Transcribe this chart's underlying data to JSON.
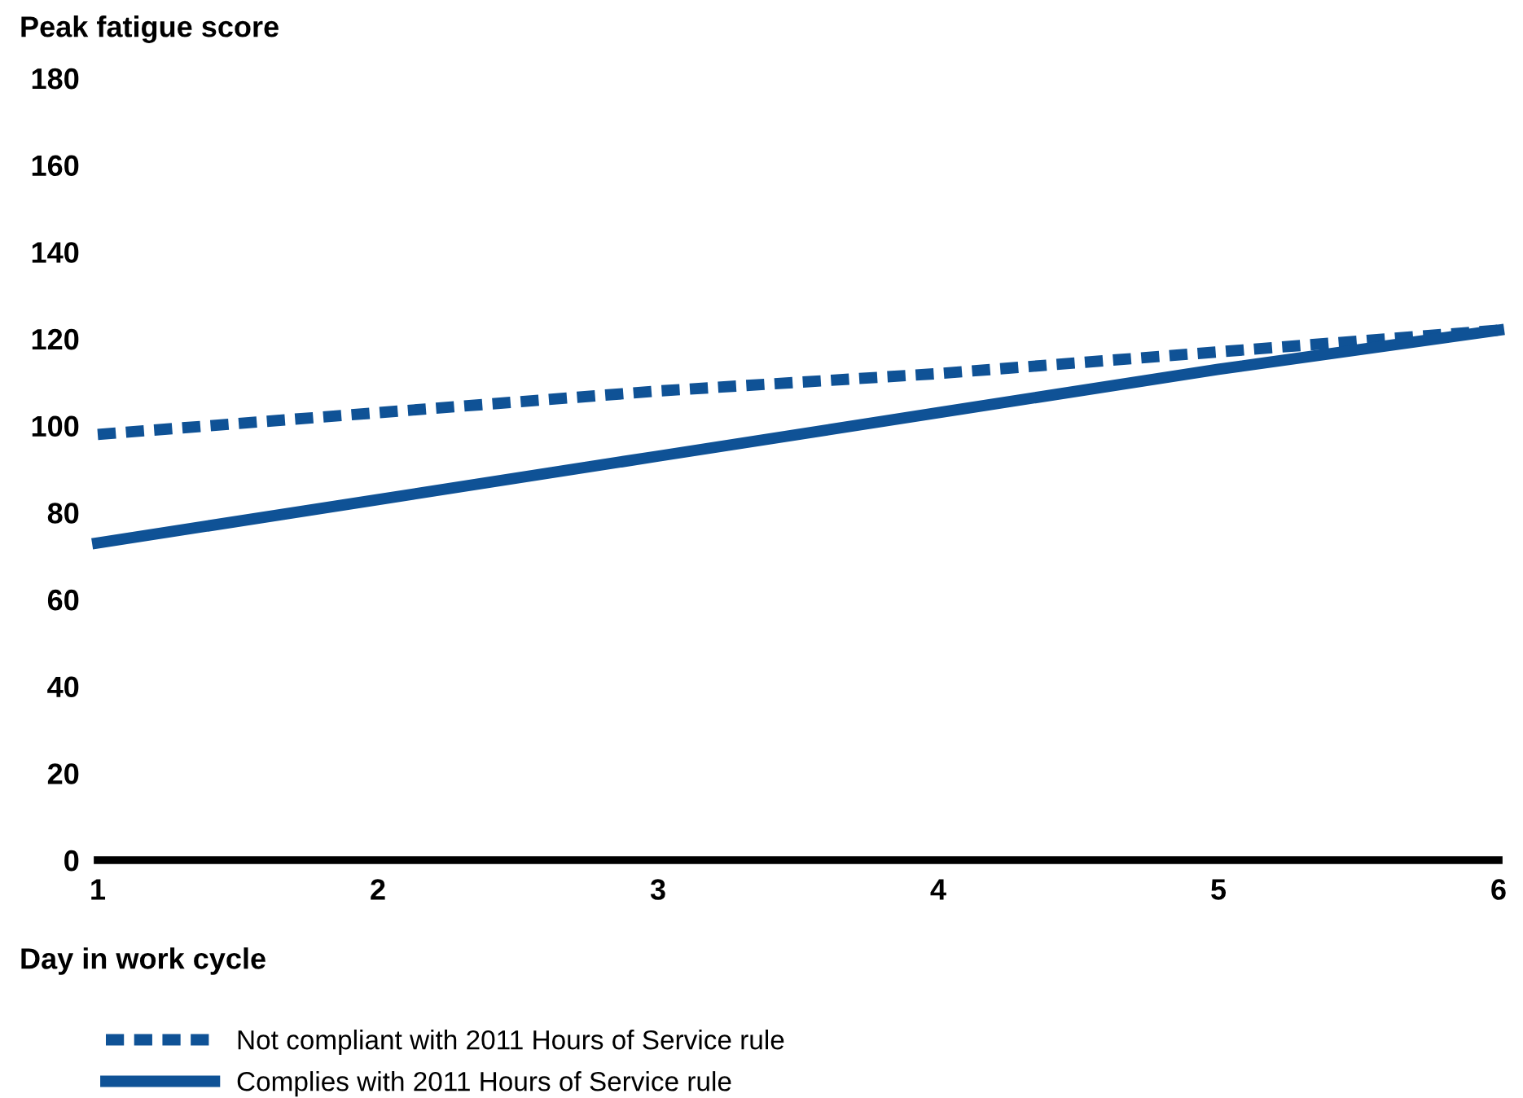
{
  "chart_data": {
    "type": "line",
    "ylabel": "Peak fatigue score",
    "xlabel": "Day in work cycle",
    "x": [
      1,
      2,
      3,
      4,
      5,
      6
    ],
    "series": [
      {
        "name": "Not compliant with 2011 Hours of Service rule",
        "color": "#0f5296",
        "line_style": "dashed",
        "values": [
          98,
          103,
          108,
          112,
          117,
          122
        ]
      },
      {
        "name": "Complies with 2011 Hours of Service rule",
        "color": "#0f5296",
        "line_style": "solid",
        "values": [
          73,
          83,
          93,
          103,
          113,
          122
        ]
      }
    ],
    "xlim": [
      1,
      6
    ],
    "xticks": [
      1,
      2,
      3,
      4,
      5,
      6
    ],
    "ylim": [
      0,
      180
    ],
    "yticks": [
      0,
      20,
      40,
      60,
      80,
      100,
      120,
      140,
      160,
      180
    ],
    "grid": false,
    "legend": "bottom",
    "marker": "none"
  }
}
